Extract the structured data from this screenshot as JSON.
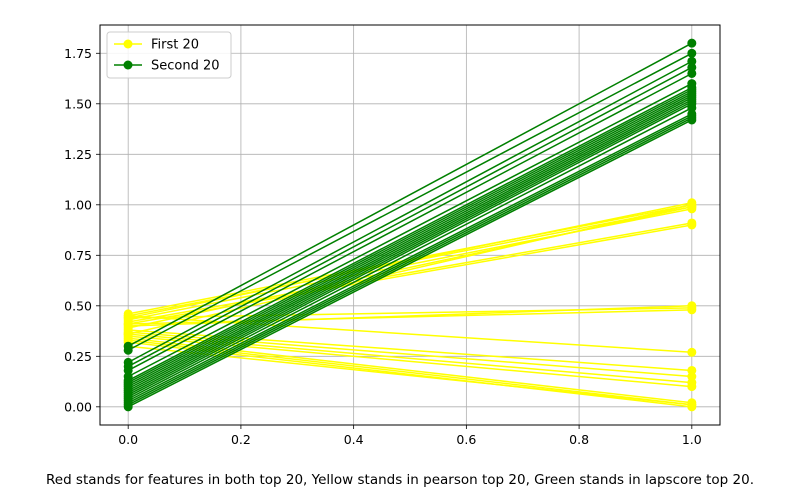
{
  "chart_data": {
    "type": "line",
    "xlim": [
      -0.05,
      1.05
    ],
    "ylim": [
      -0.09,
      1.89
    ],
    "x_ticks": [
      0.0,
      0.2,
      0.4,
      0.6,
      0.8,
      1.0
    ],
    "y_ticks": [
      0.0,
      0.25,
      0.5,
      0.75,
      1.0,
      1.25,
      1.5,
      1.75
    ],
    "x_tick_labels": [
      "0.0",
      "0.2",
      "0.4",
      "0.6",
      "0.8",
      "1.0"
    ],
    "y_tick_labels": [
      "0.00",
      "0.25",
      "0.50",
      "0.75",
      "1.00",
      "1.25",
      "1.50",
      "1.75"
    ],
    "grid": true,
    "legend_placement": "top-left",
    "caption": "Red stands for features in both top 20, Yellow stands in pearson top 20, Green stands in lapscore top 20.",
    "series": [
      {
        "name": "First 20",
        "color": "#ffff00",
        "lines": [
          [
            0.46,
            1.0
          ],
          [
            0.45,
            0.99
          ],
          [
            0.44,
            1.01
          ],
          [
            0.43,
            0.98
          ],
          [
            0.42,
            0.91
          ],
          [
            0.41,
            0.9
          ],
          [
            0.44,
            0.49
          ],
          [
            0.4,
            0.5
          ],
          [
            0.45,
            0.27
          ],
          [
            0.38,
            0.18
          ],
          [
            0.37,
            0.15
          ],
          [
            0.36,
            0.12
          ],
          [
            0.35,
            0.1
          ],
          [
            0.34,
            0.02
          ],
          [
            0.33,
            0.01
          ],
          [
            0.32,
            0.0
          ],
          [
            0.39,
            0.99
          ],
          [
            0.41,
            0.48
          ],
          [
            0.36,
            1.0
          ],
          [
            0.3,
            0.01
          ]
        ]
      },
      {
        "name": "Second 20",
        "color": "#008000",
        "lines": [
          [
            0.3,
            1.8
          ],
          [
            0.28,
            1.75
          ],
          [
            0.22,
            1.71
          ],
          [
            0.2,
            1.68
          ],
          [
            0.18,
            1.65
          ],
          [
            0.15,
            1.6
          ],
          [
            0.13,
            1.58
          ],
          [
            0.12,
            1.57
          ],
          [
            0.11,
            1.56
          ],
          [
            0.1,
            1.55
          ],
          [
            0.09,
            1.54
          ],
          [
            0.08,
            1.53
          ],
          [
            0.07,
            1.52
          ],
          [
            0.06,
            1.51
          ],
          [
            0.05,
            1.5
          ],
          [
            0.04,
            1.48
          ],
          [
            0.03,
            1.45
          ],
          [
            0.02,
            1.44
          ],
          [
            0.01,
            1.43
          ],
          [
            0.0,
            1.42
          ]
        ]
      }
    ]
  }
}
